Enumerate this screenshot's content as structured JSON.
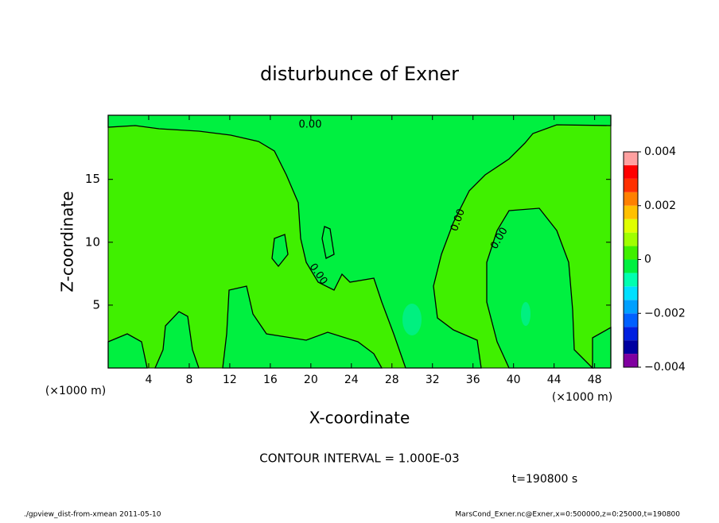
{
  "chart_data": {
    "type": "contour",
    "title": "disturbunce of Exner",
    "x_label": "X-coordinate",
    "y_label": "Z-coordinate",
    "x_unit_left": "(×1000 m)",
    "x_unit_right": "(×1000 m)",
    "xlim": [
      0,
      49.6
    ],
    "xticks": [
      4,
      8,
      12,
      16,
      20,
      24,
      28,
      32,
      36,
      40,
      44,
      48
    ],
    "ylim": [
      0,
      20.1
    ],
    "yticks": [
      5,
      10,
      15
    ],
    "contour_labels": [
      "0.00",
      "0.00",
      "0.00",
      "0.00"
    ],
    "contour_interval": "CONTOUR INTERVAL = 1.000E-03",
    "time": "t=190800 s",
    "colorbar": {
      "lim": [
        -0.004,
        0.004
      ],
      "ticks": [
        {
          "value": 0.004,
          "label": "0.004"
        },
        {
          "value": 0.002,
          "label": "0.002"
        },
        0,
        {
          "value": -0.002,
          "label": "−0.002"
        },
        {
          "value": -0.004,
          "label": "−0.004"
        }
      ],
      "colors": [
        "#8000a0",
        "#0000a0",
        "#0020e0",
        "#0060ff",
        "#00a0ff",
        "#00e0ff",
        "#00ffb0",
        "#00f040",
        "#40f000",
        "#a0ff00",
        "#e0ff00",
        "#ffc000",
        "#ff8000",
        "#ff3000",
        "#ff0000",
        "#ffa0a0"
      ]
    },
    "footer_left": "./gpview_dist-from-xmean  2011-05-10",
    "footer_right": "MarsCond_Exner.nc@Exner,x=0:500000,z=0:25000,t=190800"
  }
}
